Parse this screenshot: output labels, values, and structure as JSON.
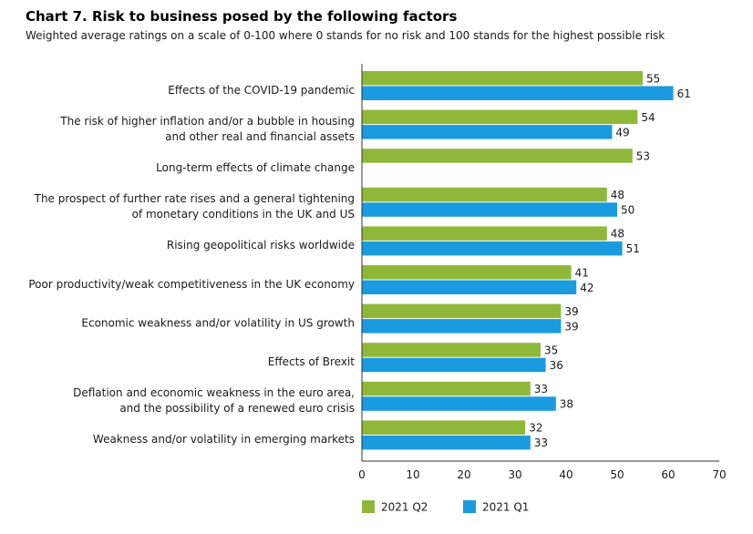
{
  "title": "Chart 7. Risk to business posed by the following factors",
  "subtitle": "Weighted average ratings on a scale of 0-100 where 0 stands for no risk and 100 stands for the highest possible risk",
  "colors": {
    "q2": "#8fb83a",
    "q1": "#1a9be0",
    "axis": "#333333",
    "text": "#1a1a1a"
  },
  "chart_data": {
    "type": "bar",
    "orientation": "horizontal",
    "title": "Chart 7. Risk to business posed by the following factors",
    "subtitle": "Weighted average ratings on a scale of 0-100 where 0 stands for no risk and 100 stands for the highest possible risk",
    "categories": [
      [
        "Effects of the COVID-19 pandemic"
      ],
      [
        "The risk of higher inflation and/or a bubble in housing",
        "and other real and financial assets"
      ],
      [
        "Long-term effects of climate change"
      ],
      [
        "The prospect of further rate rises and a general tightening",
        "of monetary conditions in the UK and US"
      ],
      [
        "Rising geopolitical risks worldwide"
      ],
      [
        "Poor productivity/weak competitiveness in the UK economy"
      ],
      [
        "Economic weakness and/or volatility in US growth"
      ],
      [
        "Effects of Brexit"
      ],
      [
        "Deflation and economic weakness in the euro area,",
        "and the possibility of a renewed euro crisis"
      ],
      [
        "Weakness and/or volatility in emerging markets"
      ]
    ],
    "series": [
      {
        "name": "2021 Q2",
        "color": "#8fb83a",
        "values": [
          55,
          54,
          53,
          48,
          48,
          41,
          39,
          35,
          33,
          32
        ]
      },
      {
        "name": "2021 Q1",
        "color": "#1a9be0",
        "values": [
          61,
          49,
          null,
          50,
          51,
          42,
          39,
          36,
          38,
          33
        ]
      }
    ],
    "xlim": [
      0,
      70
    ],
    "xticks": [
      0,
      10,
      20,
      30,
      40,
      50,
      60,
      70
    ],
    "grid": false,
    "legend_position": "bottom"
  }
}
